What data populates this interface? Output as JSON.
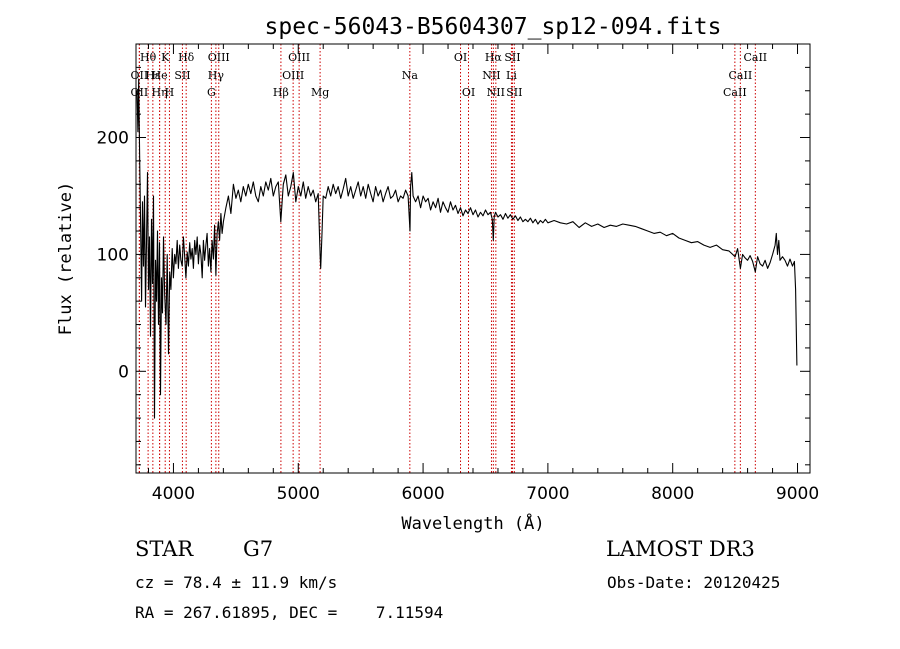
{
  "chart_data": {
    "type": "line",
    "title": "spec-56043-B5604307_sp12-094.fits",
    "xlabel": "Wavelength (Å)",
    "ylabel": "Flux (relative)",
    "xlim": [
      3700,
      9100
    ],
    "ylim": [
      -87,
      280
    ],
    "xticks": [
      4000,
      5000,
      6000,
      7000,
      8000,
      9000
    ],
    "yticks": [
      0,
      100,
      200
    ],
    "grid": false,
    "line_color": "#000000",
    "marker_color": "#cc0000",
    "series": [
      {
        "name": "flux",
        "points": [
          [
            3708,
            240
          ],
          [
            3715,
            205
          ],
          [
            3722,
            250
          ],
          [
            3730,
            180
          ],
          [
            3738,
            120
          ],
          [
            3745,
            60
          ],
          [
            3752,
            145
          ],
          [
            3760,
            90
          ],
          [
            3768,
            150
          ],
          [
            3776,
            55
          ],
          [
            3784,
            110
          ],
          [
            3792,
            170
          ],
          [
            3800,
            70
          ],
          [
            3808,
            115
          ],
          [
            3816,
            30
          ],
          [
            3824,
            130
          ],
          [
            3832,
            75
          ],
          [
            3840,
            150
          ],
          [
            3848,
            -40
          ],
          [
            3856,
            95
          ],
          [
            3864,
            60
          ],
          [
            3872,
            120
          ],
          [
            3880,
            40
          ],
          [
            3888,
            110
          ],
          [
            3896,
            -20
          ],
          [
            3904,
            80
          ],
          [
            3912,
            50
          ],
          [
            3920,
            115
          ],
          [
            3930,
            65
          ],
          [
            3940,
            40
          ],
          [
            3950,
            100
          ],
          [
            3960,
            15
          ],
          [
            3970,
            85
          ],
          [
            3980,
            70
          ],
          [
            3990,
            105
          ],
          [
            4000,
            80
          ],
          [
            4010,
            100
          ],
          [
            4020,
            92
          ],
          [
            4030,
            112
          ],
          [
            4040,
            88
          ],
          [
            4050,
            108
          ],
          [
            4060,
            95
          ],
          [
            4070,
            90
          ],
          [
            4080,
            115
          ],
          [
            4090,
            98
          ],
          [
            4100,
            80
          ],
          [
            4110,
            102
          ],
          [
            4120,
            90
          ],
          [
            4130,
            110
          ],
          [
            4140,
            96
          ],
          [
            4150,
            105
          ],
          [
            4160,
            88
          ],
          [
            4170,
            112
          ],
          [
            4180,
            100
          ],
          [
            4190,
            115
          ],
          [
            4200,
            92
          ],
          [
            4210,
            108
          ],
          [
            4220,
            100
          ],
          [
            4230,
            80
          ],
          [
            4240,
            112
          ],
          [
            4250,
            95
          ],
          [
            4260,
            108
          ],
          [
            4270,
            118
          ],
          [
            4280,
            90
          ],
          [
            4290,
            105
          ],
          [
            4300,
            85
          ],
          [
            4310,
            112
          ],
          [
            4320,
            96
          ],
          [
            4330,
            125
          ],
          [
            4340,
            82
          ],
          [
            4350,
            118
          ],
          [
            4360,
            128
          ],
          [
            4370,
            112
          ],
          [
            4380,
            135
          ],
          [
            4390,
            118
          ],
          [
            4400,
            128
          ],
          [
            4420,
            140
          ],
          [
            4440,
            150
          ],
          [
            4460,
            135
          ],
          [
            4480,
            160
          ],
          [
            4500,
            148
          ],
          [
            4520,
            155
          ],
          [
            4540,
            145
          ],
          [
            4560,
            158
          ],
          [
            4580,
            150
          ],
          [
            4600,
            160
          ],
          [
            4620,
            152
          ],
          [
            4640,
            162
          ],
          [
            4660,
            150
          ],
          [
            4680,
            145
          ],
          [
            4700,
            158
          ],
          [
            4720,
            150
          ],
          [
            4740,
            162
          ],
          [
            4760,
            155
          ],
          [
            4780,
            165
          ],
          [
            4800,
            150
          ],
          [
            4820,
            158
          ],
          [
            4840,
            162
          ],
          [
            4860,
            128
          ],
          [
            4880,
            160
          ],
          [
            4900,
            168
          ],
          [
            4920,
            150
          ],
          [
            4940,
            158
          ],
          [
            4960,
            170
          ],
          [
            4980,
            145
          ],
          [
            5000,
            158
          ],
          [
            5020,
            150
          ],
          [
            5040,
            162
          ],
          [
            5060,
            148
          ],
          [
            5080,
            158
          ],
          [
            5100,
            150
          ],
          [
            5120,
            155
          ],
          [
            5140,
            145
          ],
          [
            5160,
            152
          ],
          [
            5175,
            100
          ],
          [
            5180,
            88
          ],
          [
            5190,
            118
          ],
          [
            5200,
            150
          ],
          [
            5220,
            148
          ],
          [
            5240,
            158
          ],
          [
            5260,
            150
          ],
          [
            5280,
            160
          ],
          [
            5300,
            152
          ],
          [
            5320,
            158
          ],
          [
            5340,
            148
          ],
          [
            5360,
            156
          ],
          [
            5380,
            165
          ],
          [
            5400,
            150
          ],
          [
            5420,
            158
          ],
          [
            5440,
            148
          ],
          [
            5460,
            155
          ],
          [
            5480,
            162
          ],
          [
            5500,
            150
          ],
          [
            5520,
            158
          ],
          [
            5540,
            148
          ],
          [
            5560,
            160
          ],
          [
            5580,
            152
          ],
          [
            5600,
            145
          ],
          [
            5620,
            158
          ],
          [
            5640,
            150
          ],
          [
            5660,
            155
          ],
          [
            5680,
            145
          ],
          [
            5700,
            152
          ],
          [
            5720,
            158
          ],
          [
            5740,
            148
          ],
          [
            5760,
            150
          ],
          [
            5780,
            155
          ],
          [
            5800,
            145
          ],
          [
            5820,
            150
          ],
          [
            5840,
            148
          ],
          [
            5860,
            155
          ],
          [
            5880,
            150
          ],
          [
            5895,
            120
          ],
          [
            5900,
            158
          ],
          [
            5910,
            170
          ],
          [
            5920,
            150
          ],
          [
            5940,
            145
          ],
          [
            5960,
            150
          ],
          [
            5980,
            140
          ],
          [
            6000,
            150
          ],
          [
            6020,
            145
          ],
          [
            6040,
            148
          ],
          [
            6060,
            138
          ],
          [
            6080,
            145
          ],
          [
            6100,
            140
          ],
          [
            6120,
            148
          ],
          [
            6140,
            136
          ],
          [
            6160,
            145
          ],
          [
            6180,
            140
          ],
          [
            6200,
            136
          ],
          [
            6220,
            145
          ],
          [
            6240,
            138
          ],
          [
            6260,
            142
          ],
          [
            6280,
            135
          ],
          [
            6300,
            140
          ],
          [
            6320,
            133
          ],
          [
            6340,
            138
          ],
          [
            6360,
            135
          ],
          [
            6380,
            140
          ],
          [
            6400,
            134
          ],
          [
            6420,
            138
          ],
          [
            6440,
            132
          ],
          [
            6460,
            136
          ],
          [
            6480,
            133
          ],
          [
            6500,
            138
          ],
          [
            6520,
            134
          ],
          [
            6540,
            136
          ],
          [
            6555,
            130
          ],
          [
            6563,
            112
          ],
          [
            6570,
            132
          ],
          [
            6580,
            136
          ],
          [
            6600,
            132
          ],
          [
            6620,
            134
          ],
          [
            6640,
            130
          ],
          [
            6660,
            135
          ],
          [
            6680,
            131
          ],
          [
            6700,
            134
          ],
          [
            6720,
            130
          ],
          [
            6740,
            133
          ],
          [
            6760,
            129
          ],
          [
            6780,
            132
          ],
          [
            6800,
            128
          ],
          [
            6820,
            130
          ],
          [
            6840,
            128
          ],
          [
            6860,
            131
          ],
          [
            6880,
            127
          ],
          [
            6900,
            130
          ],
          [
            6920,
            126
          ],
          [
            6940,
            129
          ],
          [
            6960,
            127
          ],
          [
            6980,
            130
          ],
          [
            7000,
            127
          ],
          [
            7050,
            129
          ],
          [
            7100,
            127
          ],
          [
            7150,
            126
          ],
          [
            7200,
            128
          ],
          [
            7250,
            123
          ],
          [
            7300,
            127
          ],
          [
            7350,
            124
          ],
          [
            7400,
            126
          ],
          [
            7450,
            123
          ],
          [
            7500,
            125
          ],
          [
            7550,
            124
          ],
          [
            7600,
            126
          ],
          [
            7650,
            125
          ],
          [
            7700,
            124
          ],
          [
            7750,
            122
          ],
          [
            7800,
            120
          ],
          [
            7850,
            118
          ],
          [
            7900,
            119
          ],
          [
            7950,
            116
          ],
          [
            8000,
            118
          ],
          [
            8050,
            114
          ],
          [
            8100,
            112
          ],
          [
            8150,
            110
          ],
          [
            8200,
            111
          ],
          [
            8250,
            108
          ],
          [
            8300,
            106
          ],
          [
            8350,
            108
          ],
          [
            8400,
            104
          ],
          [
            8450,
            103
          ],
          [
            8500,
            98
          ],
          [
            8520,
            105
          ],
          [
            8542,
            88
          ],
          [
            8560,
            100
          ],
          [
            8580,
            97
          ],
          [
            8600,
            95
          ],
          [
            8620,
            99
          ],
          [
            8640,
            94
          ],
          [
            8662,
            85
          ],
          [
            8680,
            98
          ],
          [
            8700,
            92
          ],
          [
            8720,
            90
          ],
          [
            8740,
            95
          ],
          [
            8760,
            88
          ],
          [
            8780,
            93
          ],
          [
            8800,
            100
          ],
          [
            8820,
            108
          ],
          [
            8830,
            118
          ],
          [
            8840,
            100
          ],
          [
            8850,
            112
          ],
          [
            8860,
            95
          ],
          [
            8880,
            98
          ],
          [
            8900,
            95
          ],
          [
            8920,
            90
          ],
          [
            8940,
            96
          ],
          [
            8960,
            90
          ],
          [
            8975,
            94
          ],
          [
            8985,
            70
          ],
          [
            8995,
            5
          ]
        ]
      }
    ],
    "lines": [
      {
        "label": "OII",
        "wavelength": 3727,
        "row": 2
      },
      {
        "label": "OII",
        "wavelength": 3727,
        "row": 3
      },
      {
        "label": "Hθ",
        "wavelength": 3797,
        "row": 1
      },
      {
        "label": "Hε",
        "wavelength": 3835,
        "row": 2
      },
      {
        "label": "Hη",
        "wavelength": 3889,
        "row": 3
      },
      {
        "label": "K",
        "wavelength": 3934,
        "row": 1
      },
      {
        "label": "He",
        "wavelength": 3889,
        "row": 2
      },
      {
        "label": "H",
        "wavelength": 3968,
        "row": 3
      },
      {
        "label": "Hδ",
        "wavelength": 4102,
        "row": 1
      },
      {
        "label": "SII",
        "wavelength": 4072,
        "row": 2
      },
      {
        "label": "OIII",
        "wavelength": 4363,
        "row": 1
      },
      {
        "label": "Hγ",
        "wavelength": 4340,
        "row": 2
      },
      {
        "label": "G",
        "wavelength": 4304,
        "row": 3
      },
      {
        "label": "Hβ",
        "wavelength": 4861,
        "row": 3
      },
      {
        "label": "OIII",
        "wavelength": 5007,
        "row": 1
      },
      {
        "label": "OIII",
        "wavelength": 4959,
        "row": 2
      },
      {
        "label": "Mg",
        "wavelength": 5175,
        "row": 3
      },
      {
        "label": "Na",
        "wavelength": 5894,
        "row": 2
      },
      {
        "label": "OI",
        "wavelength": 6300,
        "row": 1
      },
      {
        "label": "OI",
        "wavelength": 6364,
        "row": 3
      },
      {
        "label": "Hα",
        "wavelength": 6563,
        "row": 1
      },
      {
        "label": "NII",
        "wavelength": 6548,
        "row": 2
      },
      {
        "label": "NII",
        "wavelength": 6583,
        "row": 3
      },
      {
        "label": "SII",
        "wavelength": 6716,
        "row": 1
      },
      {
        "label": "Li",
        "wavelength": 6708,
        "row": 2
      },
      {
        "label": "SII",
        "wavelength": 6731,
        "row": 3
      },
      {
        "label": "CaII",
        "wavelength": 8662,
        "row": 1
      },
      {
        "label": "CaII",
        "wavelength": 8542,
        "row": 2
      },
      {
        "label": "CaII",
        "wavelength": 8498,
        "row": 3
      }
    ]
  },
  "info": {
    "object_class": "STAR",
    "subclass": "G7",
    "survey": "LAMOST DR3",
    "cz": "cz = 78.4 ± 11.9 km/s",
    "obs_date": "Obs-Date: 20120425",
    "coords": "RA = 267.61895, DEC =    7.11594"
  }
}
